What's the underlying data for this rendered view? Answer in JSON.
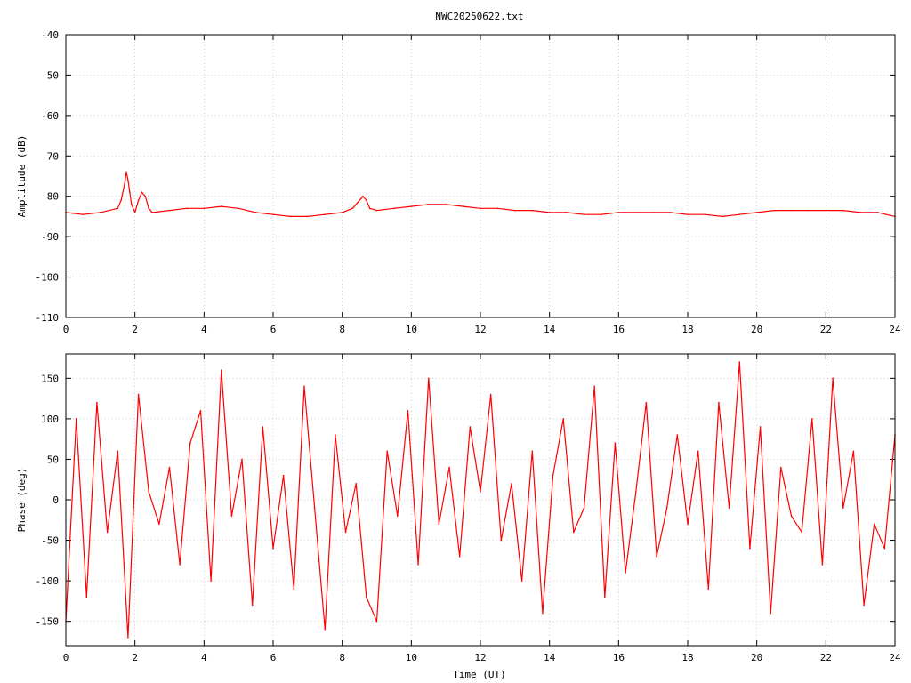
{
  "title": "NWC20250622.txt",
  "colors": {
    "series": "#ff0000",
    "axes": "#000000",
    "grid": "#a0a0a0",
    "background": "#ffffff"
  },
  "chart_data": [
    {
      "id": "amplitude",
      "type": "line",
      "xlabel": "",
      "ylabel": "Amplitude (dB)",
      "xlim": [
        0,
        24
      ],
      "ylim": [
        -110,
        -40
      ],
      "xticks": [
        "0",
        "2",
        "4",
        "6",
        "8",
        "10",
        "12",
        "14",
        "16",
        "18",
        "20",
        "22",
        "24"
      ],
      "yticks": [
        "-40",
        "-50",
        "-60",
        "-70",
        "-80",
        "-90",
        "-100",
        "-110"
      ],
      "grid": true,
      "x": [
        0.0,
        0.5,
        1.0,
        1.5,
        1.6,
        1.7,
        1.75,
        1.8,
        1.85,
        1.9,
        2.0,
        2.1,
        2.2,
        2.3,
        2.4,
        2.5,
        3.0,
        3.5,
        4.0,
        4.5,
        5.0,
        5.5,
        6.0,
        6.5,
        7.0,
        7.5,
        8.0,
        8.3,
        8.5,
        8.6,
        8.7,
        8.8,
        9.0,
        9.5,
        10.0,
        10.5,
        11.0,
        11.5,
        12.0,
        12.5,
        13.0,
        13.5,
        14.0,
        14.5,
        15.0,
        15.5,
        16.0,
        16.5,
        17.0,
        17.5,
        18.0,
        18.5,
        19.0,
        19.5,
        20.0,
        20.5,
        21.0,
        21.5,
        22.0,
        22.5,
        23.0,
        23.5,
        24.0
      ],
      "y": [
        -84,
        -84.5,
        -84,
        -83,
        -81,
        -77,
        -74,
        -76,
        -79,
        -82,
        -84,
        -81,
        -79,
        -80,
        -83,
        -84,
        -83.5,
        -83,
        -83,
        -82.5,
        -83,
        -84,
        -84.5,
        -85,
        -85,
        -84.5,
        -84,
        -83,
        -81,
        -80,
        -81,
        -83,
        -83.5,
        -83,
        -82.5,
        -82,
        -82,
        -82.5,
        -83,
        -83,
        -83.5,
        -83.5,
        -84,
        -84,
        -84.5,
        -84.5,
        -84,
        -84,
        -84,
        -84,
        -84.5,
        -84.5,
        -85,
        -84.5,
        -84,
        -83.5,
        -83.5,
        -83.5,
        -83.5,
        -83.5,
        -84,
        -84,
        -85
      ]
    },
    {
      "id": "phase",
      "type": "line",
      "xlabel": "Time (UT)",
      "ylabel": "Phase (deg)",
      "xlim": [
        0,
        24
      ],
      "ylim": [
        -180,
        180
      ],
      "xticks": [
        "0",
        "2",
        "4",
        "6",
        "8",
        "10",
        "12",
        "14",
        "16",
        "18",
        "20",
        "22",
        "24"
      ],
      "yticks": [
        "150",
        "100",
        "50",
        "0",
        "-50",
        "-100",
        "-150"
      ],
      "ytick_values": [
        150,
        100,
        50,
        0,
        -50,
        -100,
        -150
      ],
      "grid": true,
      "x": [
        0.0,
        0.3,
        0.6,
        0.9,
        1.2,
        1.5,
        1.8,
        2.1,
        2.4,
        2.7,
        3.0,
        3.3,
        3.6,
        3.9,
        4.2,
        4.5,
        4.8,
        5.1,
        5.4,
        5.7,
        6.0,
        6.3,
        6.6,
        6.9,
        7.2,
        7.5,
        7.8,
        8.1,
        8.4,
        8.7,
        9.0,
        9.3,
        9.6,
        9.9,
        10.2,
        10.5,
        10.8,
        11.1,
        11.4,
        11.7,
        12.0,
        12.3,
        12.6,
        12.9,
        13.2,
        13.5,
        13.8,
        14.1,
        14.4,
        14.7,
        15.0,
        15.3,
        15.6,
        15.9,
        16.2,
        16.5,
        16.8,
        17.1,
        17.4,
        17.7,
        18.0,
        18.3,
        18.6,
        18.9,
        19.2,
        19.5,
        19.8,
        20.1,
        20.4,
        20.7,
        21.0,
        21.3,
        21.6,
        21.9,
        22.2,
        22.5,
        22.8,
        23.1,
        23.4,
        23.7,
        24.0
      ],
      "y": [
        -150,
        100,
        -120,
        120,
        -40,
        60,
        -170,
        130,
        10,
        -30,
        40,
        -80,
        70,
        110,
        -100,
        160,
        -20,
        50,
        -130,
        90,
        -60,
        30,
        -110,
        140,
        -10,
        -160,
        80,
        -40,
        20,
        -120,
        -150,
        60,
        -20,
        110,
        -80,
        150,
        -30,
        40,
        -70,
        90,
        10,
        130,
        -50,
        20,
        -100,
        60,
        -140,
        30,
        100,
        -40,
        -10,
        140,
        -120,
        70,
        -90,
        10,
        120,
        -70,
        -10,
        80,
        -30,
        60,
        -110,
        120,
        -10,
        170,
        -60,
        90,
        -140,
        40,
        -20,
        -40,
        100,
        -80,
        150,
        -10,
        60,
        -130,
        -30,
        -60,
        80
      ]
    }
  ]
}
